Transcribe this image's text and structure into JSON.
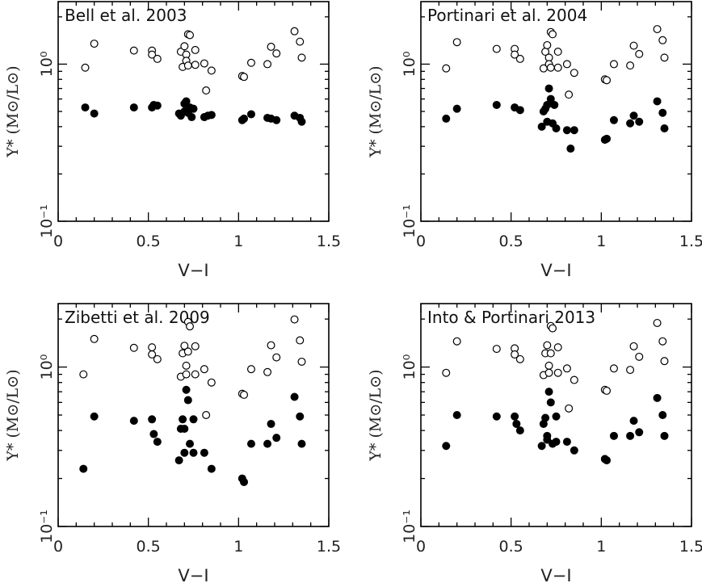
{
  "chart_data": [
    {
      "type": "scatter",
      "title": "Bell et al. 2003",
      "xlabel": "V−I",
      "ylabel": "Υ* (M⊙/L⊙)",
      "xlim": [
        0,
        1.5
      ],
      "ylim": [
        0.1,
        2.5
      ],
      "yscale": "log",
      "xticks": [
        "0",
        "0.5",
        "1",
        "1.5"
      ],
      "yticks": [
        "10⁻¹",
        "10⁰"
      ],
      "series": [
        {
          "name": "open",
          "marker": "open-circle",
          "x": [
            0.15,
            0.2,
            0.42,
            0.52,
            0.52,
            0.55,
            0.68,
            0.69,
            0.7,
            0.71,
            0.71,
            0.72,
            0.72,
            0.73,
            0.76,
            0.76,
            0.81,
            0.82,
            0.85,
            1.02,
            1.03,
            1.07,
            1.16,
            1.18,
            1.21,
            1.31,
            1.34,
            1.35
          ],
          "y": [
            0.95,
            1.35,
            1.22,
            1.22,
            1.15,
            1.08,
            1.2,
            0.96,
            1.3,
            1.15,
            1.05,
            1.55,
            0.98,
            1.53,
            1.23,
            0.99,
            1.01,
            0.68,
            0.91,
            0.84,
            0.83,
            1.02,
            1.0,
            1.29,
            1.17,
            1.62,
            1.39,
            1.1
          ]
        },
        {
          "name": "filled",
          "marker": "filled-circle",
          "x": [
            0.15,
            0.2,
            0.42,
            0.52,
            0.53,
            0.55,
            0.67,
            0.68,
            0.7,
            0.7,
            0.71,
            0.72,
            0.73,
            0.74,
            0.75,
            0.81,
            0.83,
            0.85,
            1.02,
            1.03,
            1.07,
            1.16,
            1.18,
            1.21,
            1.31,
            1.34,
            1.35
          ],
          "y": [
            0.53,
            0.485,
            0.53,
            0.53,
            0.55,
            0.545,
            0.485,
            0.47,
            0.5,
            0.56,
            0.58,
            0.49,
            0.53,
            0.46,
            0.52,
            0.46,
            0.47,
            0.475,
            0.44,
            0.45,
            0.48,
            0.455,
            0.45,
            0.44,
            0.47,
            0.455,
            0.43
          ]
        }
      ]
    },
    {
      "type": "scatter",
      "title": "Portinari et al. 2004",
      "xlabel": "V−I",
      "ylabel": "Υ* (M⊙/L⊙)",
      "xlim": [
        0,
        1.5
      ],
      "ylim": [
        0.1,
        2.5
      ],
      "yscale": "log",
      "xticks": [
        "0",
        "0.5",
        "1",
        "1.5"
      ],
      "yticks": [
        "10⁻¹",
        "10⁰"
      ],
      "series": [
        {
          "name": "open",
          "marker": "open-circle",
          "x": [
            0.14,
            0.2,
            0.42,
            0.52,
            0.52,
            0.55,
            0.68,
            0.69,
            0.7,
            0.71,
            0.71,
            0.72,
            0.72,
            0.73,
            0.76,
            0.76,
            0.81,
            0.82,
            0.85,
            1.02,
            1.03,
            1.07,
            1.16,
            1.18,
            1.21,
            1.31,
            1.34,
            1.35
          ],
          "y": [
            0.94,
            1.38,
            1.25,
            1.25,
            1.15,
            1.08,
            0.94,
            1.2,
            1.32,
            1.1,
            1.0,
            1.6,
            0.95,
            1.55,
            1.2,
            0.95,
            1.0,
            0.64,
            0.88,
            0.8,
            0.79,
            1.0,
            0.98,
            1.31,
            1.16,
            1.67,
            1.42,
            1.1
          ]
        },
        {
          "name": "filled",
          "marker": "filled-circle",
          "x": [
            0.14,
            0.2,
            0.42,
            0.52,
            0.55,
            0.67,
            0.68,
            0.69,
            0.7,
            0.7,
            0.71,
            0.72,
            0.73,
            0.74,
            0.75,
            0.81,
            0.83,
            0.85,
            1.02,
            1.03,
            1.07,
            1.16,
            1.18,
            1.21,
            1.31,
            1.34,
            1.35
          ],
          "y": [
            0.45,
            0.52,
            0.55,
            0.53,
            0.51,
            0.4,
            0.5,
            0.52,
            0.43,
            0.55,
            0.7,
            0.6,
            0.42,
            0.55,
            0.39,
            0.38,
            0.29,
            0.38,
            0.33,
            0.335,
            0.44,
            0.42,
            0.47,
            0.43,
            0.58,
            0.49,
            0.39
          ]
        }
      ]
    },
    {
      "type": "scatter",
      "title": "Zibetti et al. 2009",
      "xlabel": "V−I",
      "ylabel": "Υ* (M⊙/L⊙)",
      "xlim": [
        0,
        1.5
      ],
      "ylim": [
        0.1,
        2.5
      ],
      "yscale": "log",
      "xticks": [
        "0",
        "0.5",
        "1",
        "1.5"
      ],
      "yticks": [
        "10⁻¹",
        "10⁰"
      ],
      "series": [
        {
          "name": "open",
          "marker": "open-circle",
          "x": [
            0.14,
            0.2,
            0.42,
            0.52,
            0.52,
            0.55,
            0.68,
            0.69,
            0.7,
            0.71,
            0.71,
            0.72,
            0.72,
            0.73,
            0.76,
            0.76,
            0.81,
            0.82,
            0.85,
            1.02,
            1.03,
            1.07,
            1.16,
            1.18,
            1.21,
            1.31,
            1.34,
            1.35
          ],
          "y": [
            0.9,
            1.5,
            1.32,
            1.33,
            1.2,
            1.12,
            0.87,
            1.22,
            1.36,
            1.02,
            0.9,
            1.92,
            1.25,
            1.8,
            1.35,
            0.9,
            0.97,
            0.5,
            0.8,
            0.68,
            0.67,
            0.97,
            0.93,
            1.37,
            1.15,
            1.99,
            1.47,
            1.08
          ]
        },
        {
          "name": "filled",
          "marker": "filled-circle",
          "x": [
            0.14,
            0.2,
            0.42,
            0.52,
            0.53,
            0.55,
            0.67,
            0.68,
            0.69,
            0.7,
            0.7,
            0.71,
            0.72,
            0.73,
            0.75,
            0.75,
            0.81,
            0.85,
            1.02,
            1.03,
            1.07,
            1.16,
            1.18,
            1.21,
            1.31,
            1.34,
            1.35
          ],
          "y": [
            0.23,
            0.49,
            0.46,
            0.47,
            0.38,
            0.34,
            0.26,
            0.41,
            0.47,
            0.29,
            0.41,
            0.72,
            0.62,
            0.33,
            0.47,
            0.29,
            0.29,
            0.23,
            0.2,
            0.19,
            0.33,
            0.33,
            0.44,
            0.36,
            0.65,
            0.49,
            0.33
          ]
        }
      ]
    },
    {
      "type": "scatter",
      "title": "Into & Portinari 2013",
      "xlabel": "V−I",
      "ylabel": "Υ* (M⊙/L⊙)",
      "xlim": [
        0,
        1.5
      ],
      "ylim": [
        0.1,
        2.5
      ],
      "yscale": "log",
      "xticks": [
        "0",
        "0.5",
        "1",
        "1.5"
      ],
      "yticks": [
        "10⁻¹",
        "10⁰"
      ],
      "series": [
        {
          "name": "open",
          "marker": "open-circle",
          "x": [
            0.14,
            0.2,
            0.42,
            0.52,
            0.52,
            0.55,
            0.68,
            0.69,
            0.7,
            0.71,
            0.71,
            0.72,
            0.72,
            0.73,
            0.76,
            0.76,
            0.81,
            0.82,
            0.85,
            1.02,
            1.03,
            1.07,
            1.16,
            1.18,
            1.21,
            1.31,
            1.34,
            1.35
          ],
          "y": [
            0.92,
            1.45,
            1.3,
            1.31,
            1.2,
            1.12,
            0.89,
            1.22,
            1.37,
            1.02,
            0.92,
            1.81,
            1.22,
            1.75,
            1.33,
            0.92,
            0.98,
            0.55,
            0.83,
            0.72,
            0.71,
            0.98,
            0.96,
            1.35,
            1.16,
            1.89,
            1.45,
            1.09
          ]
        },
        {
          "name": "filled",
          "marker": "filled-circle",
          "x": [
            0.14,
            0.2,
            0.42,
            0.52,
            0.53,
            0.55,
            0.67,
            0.68,
            0.69,
            0.7,
            0.7,
            0.71,
            0.72,
            0.73,
            0.75,
            0.75,
            0.81,
            0.85,
            1.02,
            1.03,
            1.07,
            1.16,
            1.18,
            1.21,
            1.31,
            1.34,
            1.35
          ],
          "y": [
            0.32,
            0.5,
            0.49,
            0.49,
            0.44,
            0.4,
            0.32,
            0.44,
            0.48,
            0.35,
            0.37,
            0.7,
            0.6,
            0.33,
            0.49,
            0.34,
            0.34,
            0.3,
            0.265,
            0.26,
            0.37,
            0.37,
            0.46,
            0.39,
            0.64,
            0.5,
            0.37
          ]
        }
      ]
    }
  ]
}
